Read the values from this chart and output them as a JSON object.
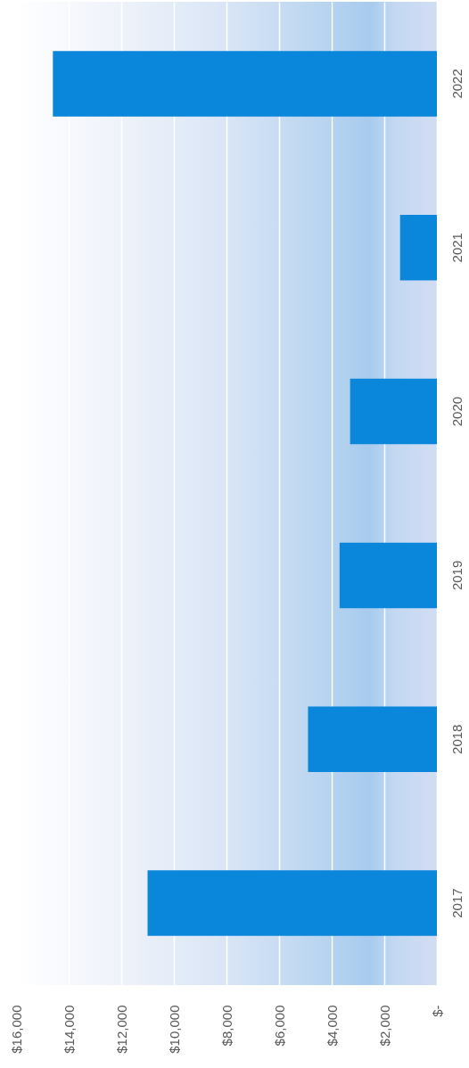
{
  "chart_data": {
    "type": "bar",
    "orientation": "horizontal",
    "categories": [
      "2022",
      "2021",
      "2020",
      "2019",
      "2018",
      "2017"
    ],
    "values": [
      14600,
      1400,
      3300,
      3700,
      4900,
      11000
    ],
    "color": "#0a86db",
    "xlim": [
      16000,
      0
    ],
    "xticks": [
      {
        "value": 16000,
        "label": "$16,000"
      },
      {
        "value": 14000,
        "label": "$14,000"
      },
      {
        "value": 12000,
        "label": "$12,000"
      },
      {
        "value": 10000,
        "label": "$10,000"
      },
      {
        "value": 8000,
        "label": "$8,000"
      },
      {
        "value": 6000,
        "label": "$6,000"
      },
      {
        "value": 4000,
        "label": "$4,000"
      },
      {
        "value": 2000,
        "label": "$2,000"
      },
      {
        "value": 0,
        "label": "$-"
      }
    ],
    "grid": "x"
  }
}
